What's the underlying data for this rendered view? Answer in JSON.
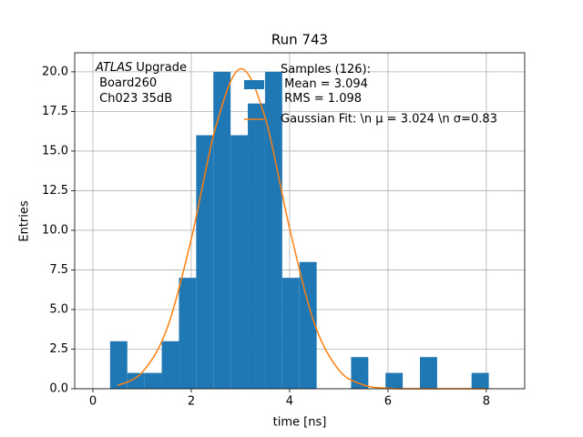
{
  "chart_data": {
    "type": "histogram",
    "title": "Run 743",
    "xlabel": "time [ns]",
    "ylabel": "Entries",
    "bins": [
      0.35,
      0.7,
      1.05,
      1.4,
      1.75,
      2.1,
      2.45,
      2.8,
      3.15,
      3.5,
      3.85,
      4.2,
      4.55,
      4.9,
      5.25,
      5.6,
      5.95,
      6.3,
      6.65,
      7.0,
      7.35,
      7.7,
      8.05
    ],
    "series": [
      {
        "name": "Samples (126):\n Mean = 3.094\n RMS = 1.098",
        "color": "#1f77b4",
        "values": [
          3,
          1,
          1,
          3,
          7,
          16,
          20,
          16,
          18,
          20,
          7,
          8,
          0,
          0,
          2,
          0,
          1,
          0,
          2,
          0,
          0,
          1
        ]
      },
      {
        "name": "Gaussian Fit: \\n μ = 3.024 \\n σ=0.83",
        "color": "#ff7f0e",
        "type": "line",
        "x": [
          0.5,
          1.0,
          1.5,
          2.0,
          2.5,
          3.0,
          3.5,
          4.0,
          4.5,
          5.0,
          5.5,
          6.0,
          6.5,
          7.0,
          7.5,
          8.0
        ],
        "values": [
          0.2,
          1.03,
          3.74,
          9.44,
          16.55,
          20.19,
          17.13,
          10.12,
          4.16,
          1.19,
          0.24,
          0.03,
          0,
          0,
          0,
          0
        ]
      }
    ],
    "annotation": {
      "emphasis": "ATLAS",
      "lines": [
        " Upgrade",
        " Board260",
        " Ch023 35dB"
      ]
    },
    "xlim": [
      -0.37,
      8.78
    ],
    "ylim": [
      0,
      21.2
    ],
    "xticks": [
      0,
      2,
      4,
      6,
      8
    ],
    "yticks": [
      {
        "value": 0,
        "label": "0.0"
      },
      {
        "value": 2.5,
        "label": "2.5"
      },
      {
        "value": 5,
        "label": "5.0"
      },
      {
        "value": 7.5,
        "label": "7.5"
      },
      {
        "value": 10,
        "label": "10.0"
      },
      {
        "value": 12.5,
        "label": "12.5"
      },
      {
        "value": 15,
        "label": "15.0"
      },
      {
        "value": 17.5,
        "label": "17.5"
      },
      {
        "value": 20,
        "label": "20.0"
      }
    ],
    "grid": true
  }
}
